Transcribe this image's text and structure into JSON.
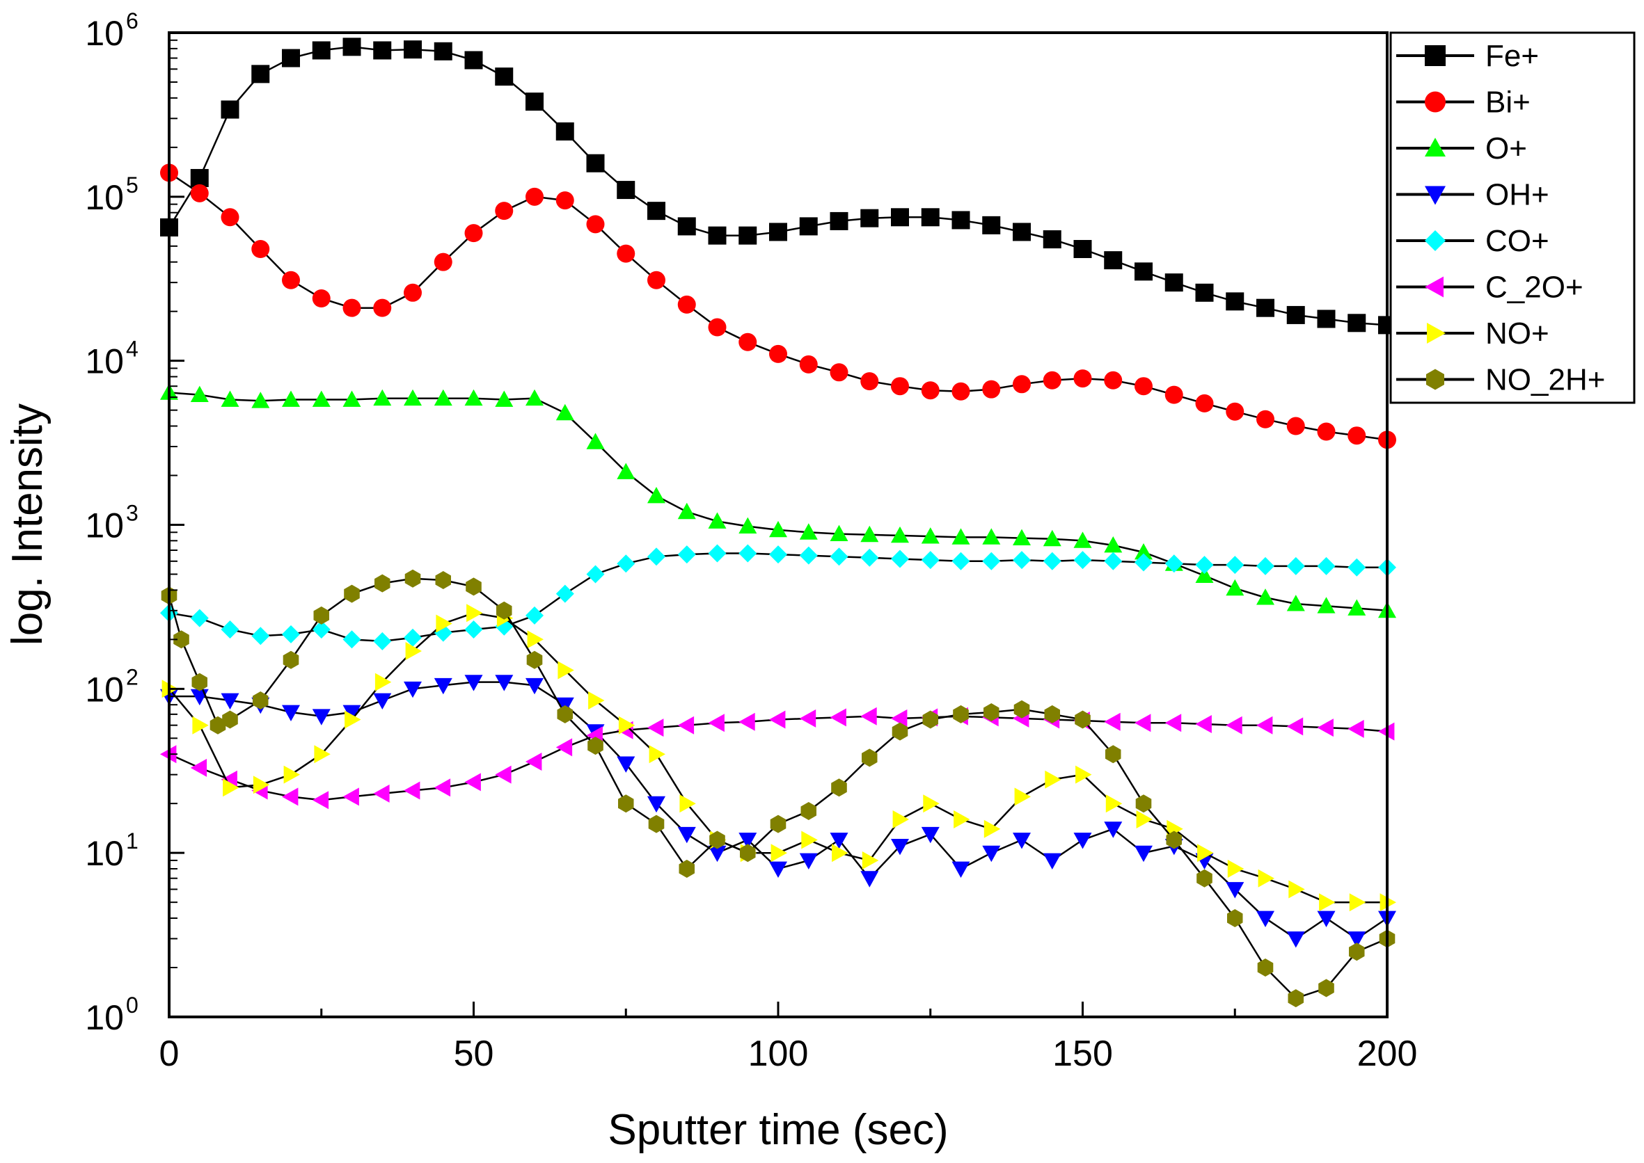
{
  "chart_data": {
    "type": "scatter",
    "title": "",
    "xlabel": "Sputter time (sec)",
    "ylabel": "log. Intensity",
    "xlim": [
      0,
      200
    ],
    "ylim": [
      1,
      1000000
    ],
    "yscale": "log",
    "x_ticks": [
      {
        "value": 0,
        "label": "0"
      },
      {
        "value": 50,
        "label": "50"
      },
      {
        "value": 100,
        "label": "100"
      },
      {
        "value": 150,
        "label": "150"
      },
      {
        "value": 200,
        "label": "200"
      }
    ],
    "y_ticks": [
      {
        "value": 1,
        "base": "10",
        "exp": "0"
      },
      {
        "value": 10,
        "base": "10",
        "exp": "1"
      },
      {
        "value": 100,
        "base": "10",
        "exp": "2"
      },
      {
        "value": 1000,
        "base": "10",
        "exp": "3"
      },
      {
        "value": 10000,
        "base": "10",
        "exp": "4"
      },
      {
        "value": 100000,
        "base": "10",
        "exp": "5"
      },
      {
        "value": 1000000,
        "base": "10",
        "exp": "6"
      }
    ],
    "legend_position": "top-right",
    "series": [
      {
        "name": "Fe+",
        "marker": "square",
        "color": "#000000",
        "x": [
          0,
          5,
          10,
          15,
          20,
          25,
          30,
          35,
          40,
          45,
          50,
          55,
          60,
          65,
          70,
          75,
          80,
          85,
          90,
          95,
          100,
          105,
          110,
          115,
          120,
          125,
          130,
          135,
          140,
          145,
          150,
          155,
          160,
          165,
          170,
          175,
          180,
          185,
          190,
          195,
          200
        ],
        "y": [
          65000,
          130000,
          340000,
          560000,
          700000,
          780000,
          820000,
          780000,
          790000,
          770000,
          680000,
          540000,
          380000,
          250000,
          160000,
          110000,
          82000,
          66000,
          58000,
          58000,
          61000,
          66000,
          71000,
          74000,
          75000,
          75000,
          72000,
          67000,
          61000,
          55000,
          48000,
          41000,
          35000,
          30000,
          26000,
          23000,
          21000,
          19000,
          18000,
          17000,
          16500
        ]
      },
      {
        "name": "Bi+",
        "marker": "circle",
        "color": "#ff0000",
        "x": [
          0,
          5,
          10,
          15,
          20,
          25,
          30,
          35,
          40,
          45,
          50,
          55,
          60,
          65,
          70,
          75,
          80,
          85,
          90,
          95,
          100,
          105,
          110,
          115,
          120,
          125,
          130,
          135,
          140,
          145,
          150,
          155,
          160,
          165,
          170,
          175,
          180,
          185,
          190,
          195,
          200
        ],
        "y": [
          140000,
          105000,
          75000,
          48000,
          31000,
          24000,
          21000,
          21000,
          26000,
          40000,
          60000,
          82000,
          100000,
          95000,
          68000,
          45000,
          31000,
          22000,
          16000,
          13000,
          11000,
          9500,
          8500,
          7500,
          7000,
          6600,
          6500,
          6700,
          7200,
          7600,
          7800,
          7600,
          7000,
          6200,
          5500,
          4900,
          4400,
          4000,
          3700,
          3500,
          3300
        ]
      },
      {
        "name": "O+",
        "marker": "triangle-up",
        "color": "#00ff00",
        "x": [
          0,
          5,
          10,
          15,
          20,
          25,
          30,
          35,
          40,
          45,
          50,
          55,
          60,
          65,
          70,
          75,
          80,
          85,
          90,
          95,
          100,
          105,
          110,
          115,
          120,
          125,
          130,
          135,
          140,
          145,
          150,
          155,
          160,
          165,
          170,
          175,
          180,
          185,
          190,
          195,
          200
        ],
        "y": [
          6400,
          6200,
          5800,
          5700,
          5800,
          5800,
          5800,
          5900,
          5900,
          5900,
          5900,
          5800,
          5900,
          4800,
          3200,
          2100,
          1500,
          1200,
          1050,
          980,
          930,
          900,
          880,
          870,
          860,
          850,
          840,
          840,
          830,
          820,
          800,
          750,
          680,
          580,
          490,
          410,
          360,
          330,
          320,
          310,
          300
        ]
      },
      {
        "name": "OH+",
        "marker": "triangle-down",
        "color": "#0000ff",
        "x": [
          0,
          5,
          10,
          15,
          20,
          25,
          30,
          35,
          40,
          45,
          50,
          55,
          60,
          65,
          70,
          75,
          80,
          85,
          90,
          95,
          100,
          105,
          110,
          115,
          120,
          125,
          130,
          135,
          140,
          145,
          150,
          155,
          160,
          165,
          170,
          175,
          180,
          185,
          190,
          195,
          200
        ],
        "y": [
          90,
          90,
          85,
          80,
          72,
          68,
          72,
          85,
          100,
          105,
          110,
          110,
          105,
          80,
          55,
          35,
          20,
          13,
          10,
          12,
          8,
          9,
          12,
          7,
          11,
          13,
          8,
          10,
          12,
          9,
          12,
          14,
          10,
          11,
          9,
          6,
          4,
          3,
          4,
          3,
          4
        ]
      },
      {
        "name": "CO+",
        "marker": "diamond",
        "color": "#00ffff",
        "x": [
          0,
          5,
          10,
          15,
          20,
          25,
          30,
          35,
          40,
          45,
          50,
          55,
          60,
          65,
          70,
          75,
          80,
          85,
          90,
          95,
          100,
          105,
          110,
          115,
          120,
          125,
          130,
          135,
          140,
          145,
          150,
          155,
          160,
          165,
          170,
          175,
          180,
          185,
          190,
          195,
          200
        ],
        "y": [
          290,
          270,
          230,
          210,
          215,
          230,
          200,
          195,
          205,
          220,
          230,
          240,
          280,
          380,
          500,
          580,
          640,
          660,
          670,
          670,
          660,
          650,
          640,
          630,
          620,
          610,
          600,
          600,
          610,
          600,
          610,
          600,
          590,
          580,
          570,
          570,
          560,
          560,
          560,
          550,
          550
        ]
      },
      {
        "name": "C_2O+",
        "marker": "triangle-left",
        "color": "#ff00ff",
        "x": [
          0,
          5,
          10,
          15,
          20,
          25,
          30,
          35,
          40,
          45,
          50,
          55,
          60,
          65,
          70,
          75,
          80,
          85,
          90,
          95,
          100,
          105,
          110,
          115,
          120,
          125,
          130,
          135,
          140,
          145,
          150,
          155,
          160,
          165,
          170,
          175,
          180,
          185,
          190,
          195,
          200
        ],
        "y": [
          40,
          33,
          28,
          24,
          22,
          21,
          22,
          23,
          24,
          25,
          27,
          30,
          36,
          44,
          52,
          56,
          58,
          60,
          62,
          63,
          65,
          66,
          67,
          68,
          66,
          67,
          68,
          67,
          66,
          65,
          64,
          63,
          62,
          62,
          61,
          60,
          60,
          59,
          58,
          57,
          55
        ]
      },
      {
        "name": "NO+",
        "marker": "triangle-right",
        "color": "#ffff00",
        "x": [
          0,
          5,
          10,
          15,
          20,
          25,
          30,
          35,
          40,
          45,
          50,
          55,
          60,
          65,
          70,
          75,
          80,
          85,
          90,
          95,
          100,
          105,
          110,
          115,
          120,
          125,
          130,
          135,
          140,
          145,
          150,
          155,
          160,
          165,
          170,
          175,
          180,
          185,
          190,
          195,
          200
        ],
        "y": [
          100,
          60,
          25,
          26,
          30,
          40,
          65,
          110,
          170,
          250,
          290,
          270,
          200,
          130,
          85,
          60,
          40,
          20,
          12,
          10,
          10,
          12,
          10,
          9,
          16,
          20,
          16,
          14,
          22,
          28,
          30,
          20,
          16,
          14,
          10,
          8,
          7,
          6,
          5,
          5,
          5
        ]
      },
      {
        "name": "NO_2H+",
        "marker": "hexagon",
        "color": "#808000",
        "x": [
          0,
          2,
          5,
          8,
          10,
          15,
          20,
          25,
          30,
          35,
          40,
          45,
          50,
          55,
          60,
          65,
          70,
          75,
          80,
          85,
          90,
          95,
          100,
          105,
          110,
          115,
          120,
          125,
          130,
          135,
          140,
          145,
          150,
          155,
          160,
          165,
          170,
          175,
          180,
          185,
          190,
          195,
          200
        ],
        "y": [
          370,
          200,
          110,
          60,
          65,
          85,
          150,
          280,
          380,
          440,
          470,
          460,
          420,
          300,
          150,
          70,
          45,
          20,
          15,
          8,
          12,
          10,
          15,
          18,
          25,
          38,
          55,
          65,
          70,
          72,
          75,
          70,
          65,
          40,
          20,
          12,
          7,
          4,
          2,
          1.3,
          1.5,
          2.5,
          3
        ]
      }
    ]
  }
}
